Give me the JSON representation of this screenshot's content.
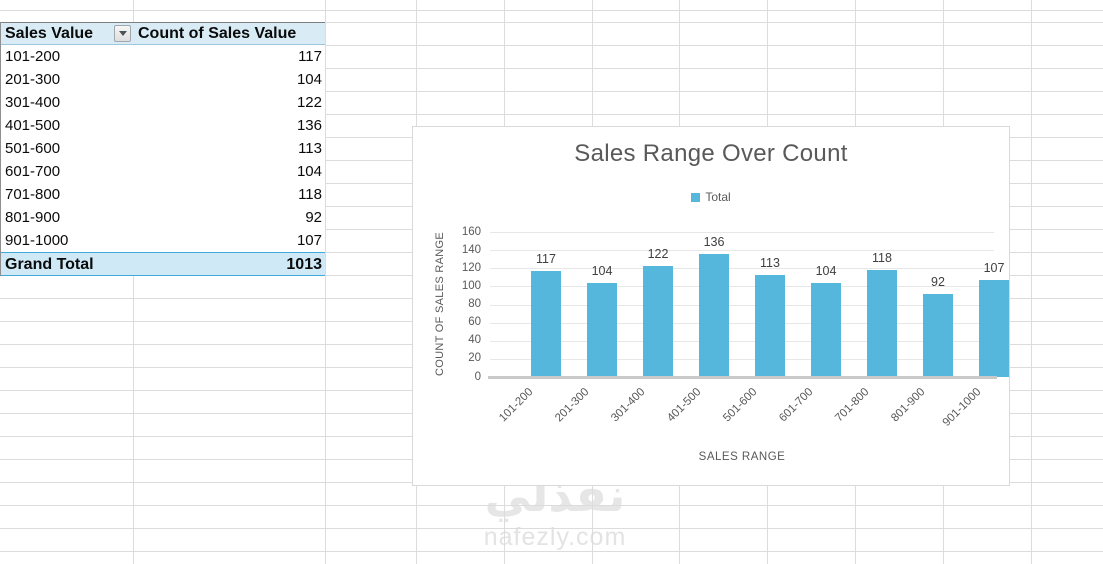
{
  "table": {
    "header": {
      "sales_value": "Sales Value",
      "count_label": "Count of Sales Value"
    },
    "rows": [
      {
        "range": "101-200",
        "count": "117"
      },
      {
        "range": "201-300",
        "count": "104"
      },
      {
        "range": "301-400",
        "count": "122"
      },
      {
        "range": "401-500",
        "count": "136"
      },
      {
        "range": "501-600",
        "count": "113"
      },
      {
        "range": "601-700",
        "count": "104"
      },
      {
        "range": "701-800",
        "count": "118"
      },
      {
        "range": "801-900",
        "count": "92"
      },
      {
        "range": "901-1000",
        "count": "107"
      }
    ],
    "grand_total": {
      "label": "Grand Total",
      "value": "1013"
    }
  },
  "chart_data": {
    "type": "bar",
    "title": "Sales Range Over Count",
    "legend": [
      "Total"
    ],
    "legend_position": "top",
    "categories": [
      "101-200",
      "201-300",
      "301-400",
      "401-500",
      "501-600",
      "601-700",
      "701-800",
      "801-900",
      "901-1000"
    ],
    "values": [
      117,
      104,
      122,
      136,
      113,
      104,
      118,
      92,
      107
    ],
    "xlabel": "SALES RANGE",
    "ylabel": "COUNT OF SALES RANGE",
    "ylim": [
      0,
      160
    ],
    "ytick_step": 20,
    "yticks": [
      0,
      20,
      40,
      60,
      80,
      100,
      120,
      140,
      160
    ],
    "grid": true,
    "data_labels": true,
    "bar_color": "#56b7dc"
  },
  "watermark": {
    "arabic": "نفذلي",
    "domain": "nafezly.com"
  },
  "colors": {
    "accent": "#56b7dc",
    "header_fill": "#d9ecf6",
    "total_fill": "#cfe9f7",
    "total_border": "#3fa9dc",
    "sheet_grid": "#dcdcdc",
    "chart_grid": "#e7e7e7",
    "axis_line": "#c9c9c9",
    "muted_text": "#595959",
    "data_label_text": "#404040"
  }
}
